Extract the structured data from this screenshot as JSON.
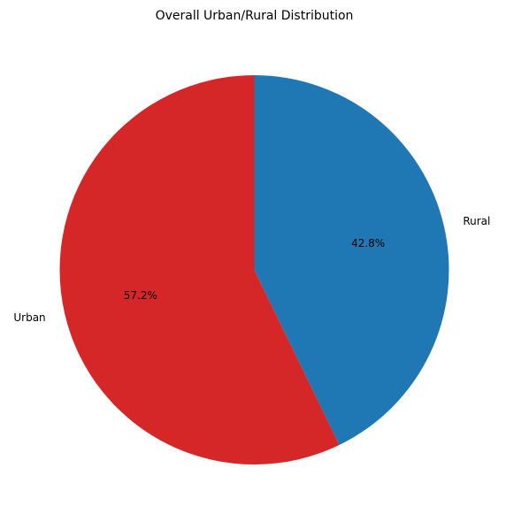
{
  "chart_data": {
    "type": "pie",
    "title": "Overall Urban/Rural Distribution",
    "slices": [
      {
        "label": "Rural",
        "value": 42.8,
        "pct_label": "42.8%",
        "color": "#1f77b4"
      },
      {
        "label": "Urban",
        "value": 57.2,
        "pct_label": "57.2%",
        "color": "#d62728"
      }
    ],
    "start_angle_deg": 90,
    "direction": "clockwise",
    "legend": "none"
  }
}
